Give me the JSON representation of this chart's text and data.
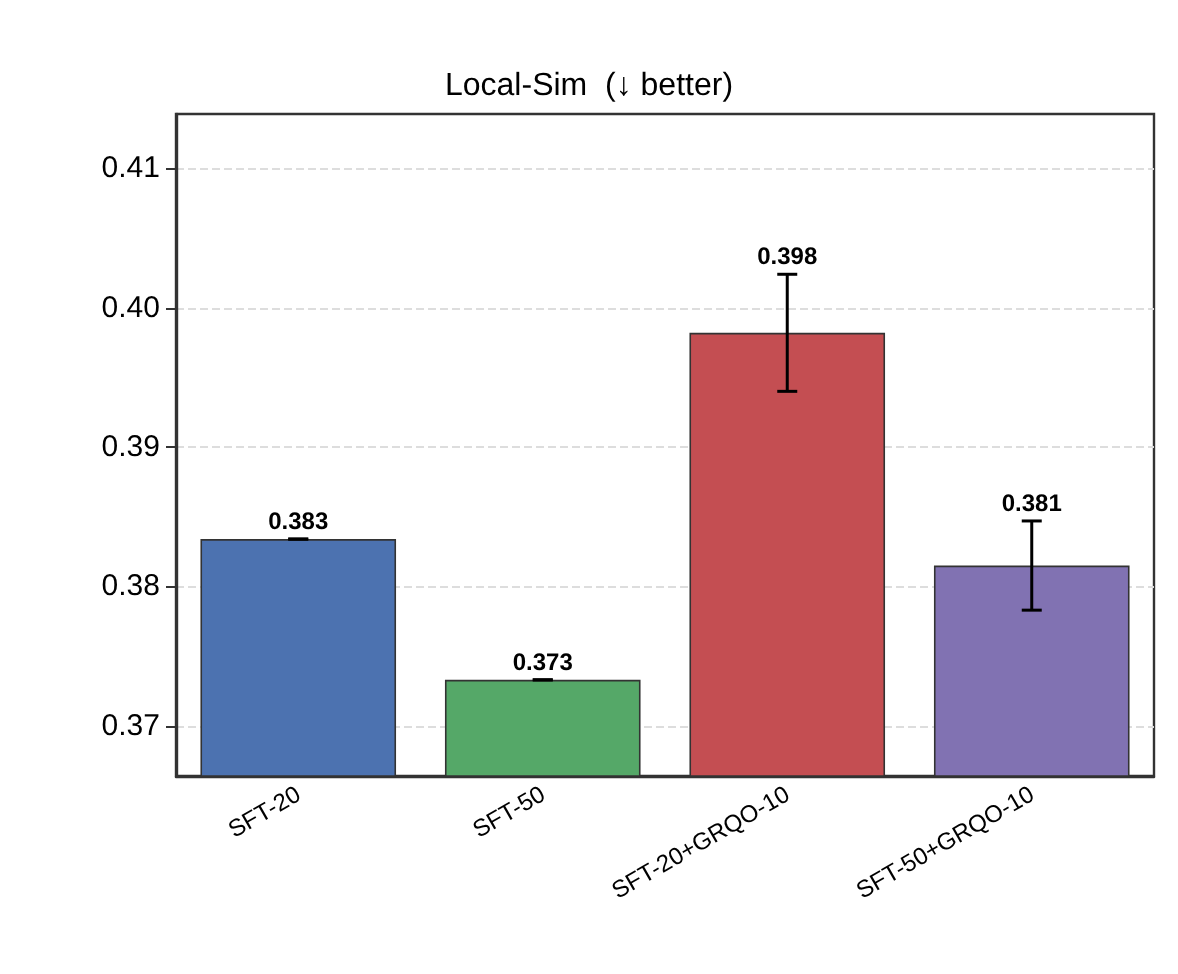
{
  "chart_data": {
    "type": "bar",
    "title": "Local-Sim  (↓ better)",
    "categories": [
      "SFT-20",
      "SFT-50",
      "SFT-20+GRQO-10",
      "SFT-50+GRQO-10"
    ],
    "values": [
      0.3834,
      0.3733,
      0.3982,
      0.3815
    ],
    "colors": [
      "#4c72b0",
      "#55a868",
      "#c44e52",
      "#8172b2"
    ],
    "errors": [
      0,
      0,
      0.0042,
      0.0032
    ],
    "value_labels": [
      "0.383",
      "0.373",
      "0.398",
      "0.381"
    ],
    "ylim": [
      0.3664,
      0.4139
    ],
    "yticks": [
      0.37,
      0.38,
      0.39,
      {
        "value": 0.4,
        "label": "0.40"
      },
      0.41
    ],
    "grid": "y"
  }
}
